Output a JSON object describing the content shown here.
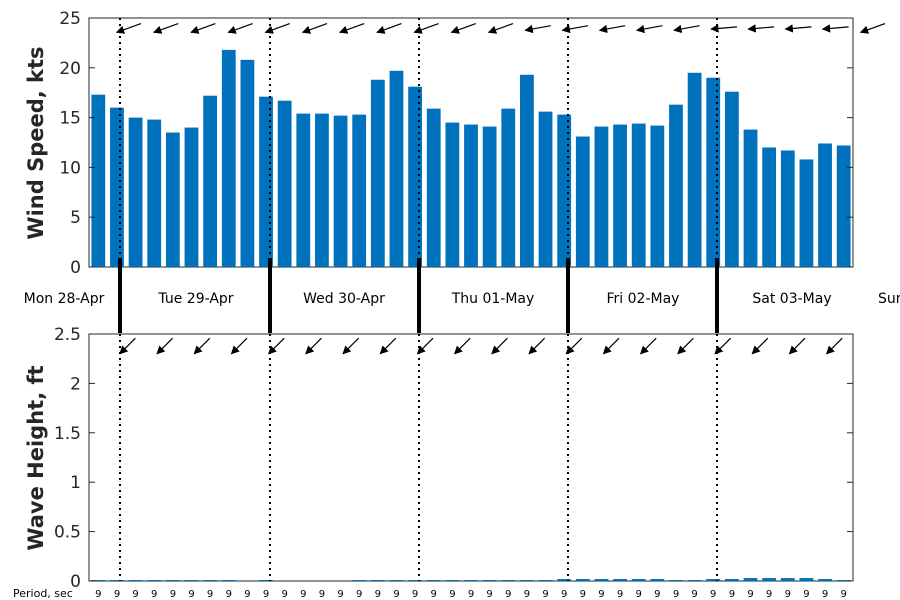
{
  "chart_data": [
    {
      "type": "bar",
      "title": "",
      "xlabel": "",
      "ylabel": "Wind Speed, kts",
      "ylim": [
        0,
        25
      ],
      "yticks": [
        0,
        5,
        10,
        15,
        20,
        25
      ],
      "grid": false,
      "bar_color": "#0072BD",
      "values": [
        17.3,
        16.0,
        15.0,
        14.8,
        13.5,
        14.0,
        17.2,
        21.8,
        20.8,
        17.1,
        16.7,
        15.4,
        15.4,
        15.2,
        15.3,
        18.8,
        19.7,
        18.1,
        15.9,
        14.5,
        14.3,
        14.1,
        15.9,
        19.3,
        15.6,
        15.3,
        13.1,
        14.1,
        14.3,
        14.4,
        14.2,
        16.3,
        19.5,
        19.0,
        17.6,
        13.8,
        12.0,
        11.7,
        10.8,
        12.4,
        12.2
      ],
      "direction_arrows": {
        "count": 21,
        "angle_deg": [
          200,
          200,
          200,
          200,
          200,
          200,
          200,
          200,
          200,
          200,
          200,
          190,
          190,
          190,
          190,
          190,
          185,
          185,
          185,
          185,
          200
        ]
      }
    },
    {
      "type": "bar",
      "title": "",
      "xlabel": "",
      "ylabel": "Wave Height, ft",
      "ylim": [
        0,
        2.5
      ],
      "yticks": [
        0,
        0.5,
        1,
        1.5,
        2,
        2.5
      ],
      "grid": false,
      "bar_color": "#0072BD",
      "values": [
        0.01,
        0.01,
        0.01,
        0.01,
        0.01,
        0.01,
        0.01,
        0.01,
        0.0,
        0.01,
        0.0,
        0.0,
        0.0,
        0.0,
        0.01,
        0.01,
        0.01,
        0.01,
        0.01,
        0.01,
        0.01,
        0.01,
        0.01,
        0.01,
        0.01,
        0.02,
        0.02,
        0.02,
        0.02,
        0.02,
        0.02,
        0.01,
        0.01,
        0.02,
        0.02,
        0.03,
        0.03,
        0.03,
        0.03,
        0.02,
        0.01
      ],
      "direction_arrows": {
        "count": 20,
        "angle_deg": [
          225,
          225,
          225,
          225,
          225,
          225,
          225,
          225,
          225,
          225,
          225,
          225,
          225,
          225,
          225,
          225,
          225,
          225,
          225,
          225
        ]
      }
    }
  ],
  "days": [
    "Mon 28-Apr",
    "Tue 29-Apr",
    "Wed 30-Apr",
    "Thu 01-May",
    "Fri 02-May",
    "Sat 03-May",
    "Sun"
  ],
  "period_label": "Period, sec",
  "periods": [
    "9",
    "9",
    "9",
    "9",
    "9",
    "9",
    "9",
    "9",
    "9",
    "9",
    "9",
    "9",
    "9",
    "9",
    "9",
    "9",
    "9",
    "9",
    "9",
    "9",
    "9",
    "9",
    "9",
    "9",
    "9",
    "9",
    "9",
    "9",
    "9",
    "9",
    "9",
    "9",
    "9",
    "9",
    "9",
    "9",
    "9",
    "9",
    "9",
    "9",
    "9"
  ]
}
